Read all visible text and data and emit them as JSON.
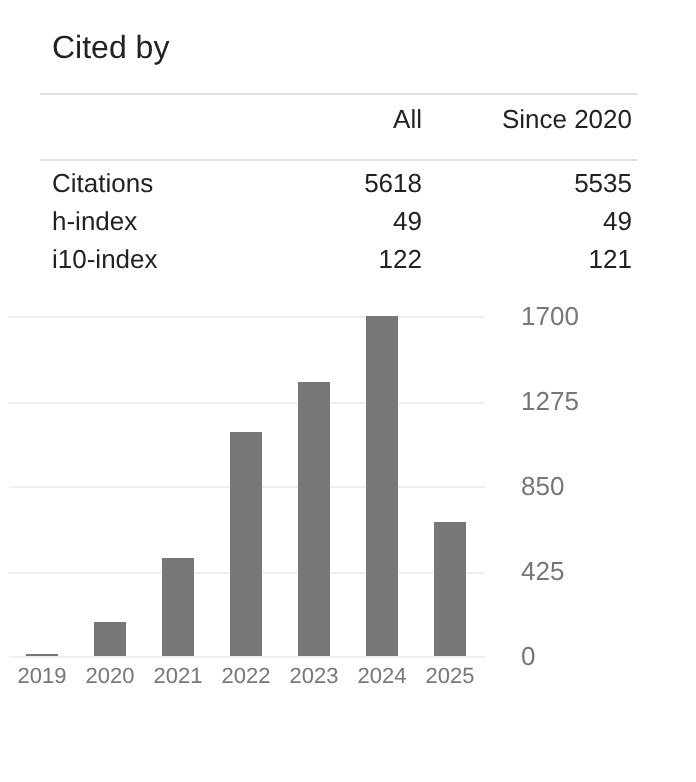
{
  "chart_data": [
    {
      "type": "other",
      "title": "Cited by",
      "annotations": [
        "All",
        "Since 2020",
        "Citations",
        "5618",
        "5535",
        "h-index",
        "49",
        "49",
        "i10-index",
        "122",
        "121"
      ]
    },
    {
      "type": "bar",
      "categories": [
        "2019",
        "2020",
        "2021",
        "2022",
        "2023",
        "2024",
        "2025"
      ],
      "values": [
        10,
        170,
        490,
        1120,
        1370,
        1700,
        670
      ],
      "color": "#777777",
      "ylim": [
        0,
        1700
      ],
      "yticks": [
        0,
        425,
        850,
        1275,
        1700
      ],
      "grid": "y",
      "legend": false
    }
  ]
}
